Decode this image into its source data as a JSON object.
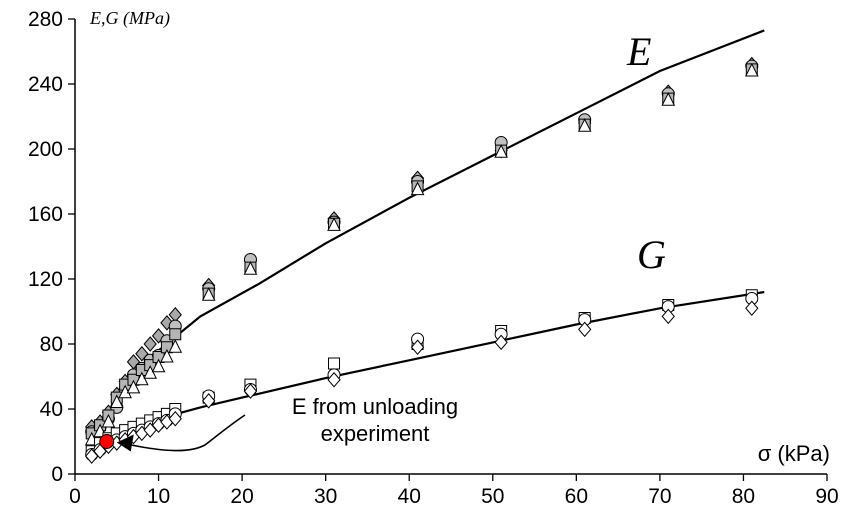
{
  "chart_data": {
    "type": "scatter",
    "title": "",
    "xlabel": "σ (kPa)",
    "ylabel": "E,G (MPa)",
    "xlim": [
      0,
      90
    ],
    "ylim": [
      0,
      280
    ],
    "x_ticks": [
      "0",
      "10",
      "20",
      "30",
      "40",
      "50",
      "60",
      "70",
      "80",
      "90"
    ],
    "y_ticks": [
      "0",
      "40",
      "80",
      "120",
      "160",
      "200",
      "240",
      "280"
    ],
    "grid": false,
    "curve_labels": {
      "E": "E",
      "G": "G"
    },
    "annotation": {
      "line1": "E from unloading",
      "line2": "experiment",
      "point": {
        "x": 3.8,
        "y": 20
      },
      "color": "#ff0000"
    },
    "fit_lines": [
      {
        "name": "E",
        "x": [
          2,
          5,
          10,
          15,
          22,
          30,
          40,
          50,
          60,
          70,
          82.5
        ],
        "y": [
          19,
          45,
          76,
          97,
          117,
          142,
          170,
          196,
          222,
          248,
          273
        ]
      },
      {
        "name": "G",
        "x": [
          2,
          5,
          10,
          15,
          20,
          30,
          40,
          50,
          60,
          70,
          82.5
        ],
        "y": [
          10,
          23,
          34,
          41,
          47,
          59,
          70,
          81,
          92,
          102,
          112
        ]
      }
    ],
    "series": [
      {
        "marker": "diamond",
        "fill": "#a9a9a9",
        "x": [
          2,
          3,
          4,
          5,
          6,
          7,
          8,
          9,
          10,
          11,
          12,
          16,
          21,
          31,
          41,
          51,
          61,
          71,
          81
        ],
        "y": [
          29,
          32,
          38,
          49,
          57,
          69,
          74,
          80,
          85,
          93,
          98,
          116,
          131,
          157,
          182,
          199,
          216,
          235,
          252
        ]
      },
      {
        "marker": "circle",
        "fill": "#c0c0c0",
        "x": [
          2,
          3,
          4,
          5,
          6,
          7,
          8,
          9,
          10,
          11,
          12,
          16,
          21,
          31,
          41,
          51,
          61,
          71,
          81
        ],
        "y": [
          26,
          29,
          34,
          41,
          52,
          61,
          65,
          70,
          73,
          82,
          91,
          114,
          132,
          155,
          180,
          204,
          218,
          234,
          251
        ]
      },
      {
        "marker": "square",
        "fill": "#b5b5b5",
        "x": [
          2,
          3,
          4,
          5,
          6,
          7,
          8,
          9,
          10,
          11,
          12,
          16,
          21,
          31,
          41,
          51,
          61,
          71,
          81
        ],
        "y": [
          25,
          30,
          36,
          47,
          55,
          58,
          64,
          67,
          72,
          78,
          86,
          111,
          127,
          154,
          177,
          199,
          215,
          231,
          249
        ]
      },
      {
        "marker": "triangle",
        "fill": "#ffffff",
        "x": [
          2,
          3,
          4,
          5,
          6,
          7,
          8,
          9,
          10,
          11,
          12,
          16,
          21,
          31,
          41,
          51,
          61,
          71,
          81
        ],
        "y": [
          21,
          26,
          32,
          44,
          50,
          53,
          58,
          62,
          66,
          72,
          78,
          110,
          126,
          153,
          175,
          198,
          214,
          230,
          248
        ]
      },
      {
        "marker": "square",
        "fill": "#ffffff",
        "x": [
          2,
          3,
          4,
          5,
          6,
          7,
          8,
          9,
          10,
          11,
          12,
          16,
          21,
          31,
          41,
          51,
          61,
          71,
          81
        ],
        "y": [
          14,
          19,
          22,
          25,
          27,
          29,
          31,
          33,
          35,
          37,
          40,
          47,
          55,
          68,
          80,
          88,
          96,
          104,
          110
        ]
      },
      {
        "marker": "circle",
        "fill": "#ffffff",
        "x": [
          2,
          3,
          4,
          5,
          6,
          7,
          8,
          9,
          10,
          11,
          12,
          16,
          21,
          31,
          41,
          51,
          61,
          71,
          81
        ],
        "y": [
          12,
          15,
          19,
          21,
          23,
          25,
          27,
          29,
          31,
          33,
          37,
          48,
          52,
          61,
          83,
          86,
          95,
          103,
          108
        ]
      },
      {
        "marker": "diamond",
        "fill": "#ffffff",
        "x": [
          2,
          3,
          4,
          5,
          6,
          7,
          8,
          9,
          10,
          11,
          12,
          16,
          21,
          31,
          41,
          51,
          61,
          71,
          81
        ],
        "y": [
          11,
          14,
          17,
          19,
          21,
          23,
          25,
          27,
          30,
          32,
          34,
          45,
          51,
          58,
          78,
          81,
          89,
          97,
          102
        ]
      }
    ]
  }
}
